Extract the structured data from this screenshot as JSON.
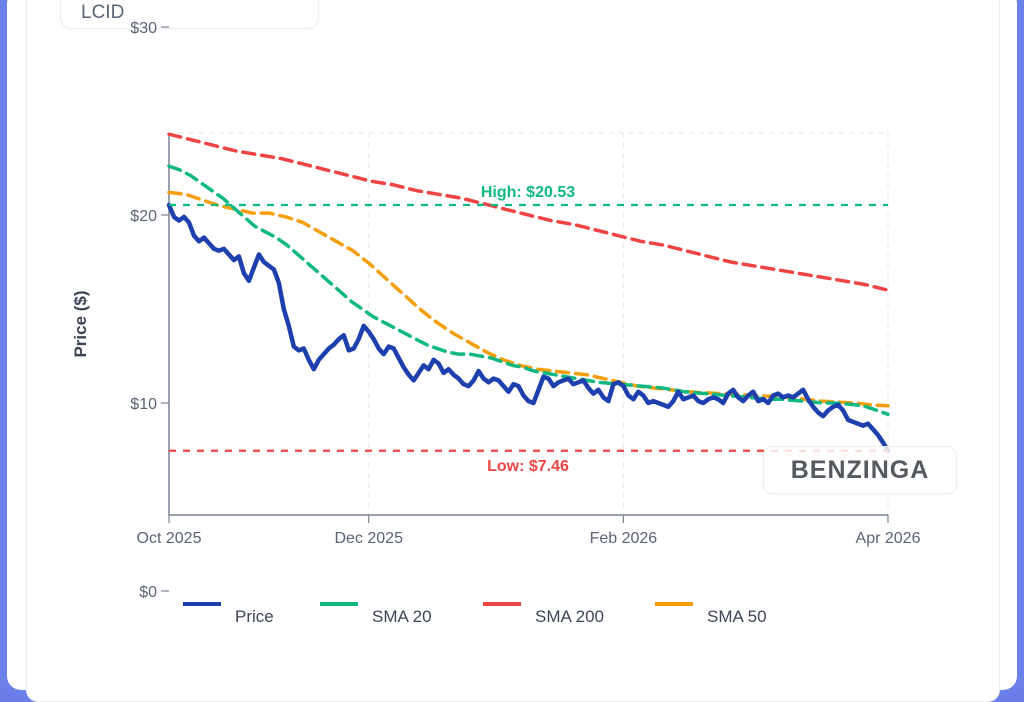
{
  "ticker": "LCID",
  "watermark": "BENZINGA",
  "chart_data": {
    "type": "line",
    "title": "",
    "xlabel": "",
    "ylabel": "Price ($)",
    "y_ticks": [
      {
        "value": 0,
        "label": "$0"
      },
      {
        "value": 10,
        "label": "$10"
      },
      {
        "value": 20,
        "label": "$20"
      },
      {
        "value": 30,
        "label": "$30"
      }
    ],
    "x_ticks": [
      {
        "index": 0,
        "label": "Oct 2025"
      },
      {
        "index": 40,
        "label": "Dec 2025"
      },
      {
        "index": 91,
        "label": "Feb 2026"
      },
      {
        "index": 144,
        "label": "Apr 2026"
      }
    ],
    "ylim": [
      4.2,
      24.5
    ],
    "grid": true,
    "legend_position": "bottom",
    "colors": {
      "price": "#1e3fae",
      "sma20": "#10b981",
      "sma200": "#ef4444",
      "sma50": "#f59e0b"
    },
    "annotations": [
      {
        "label": "High: $20.53",
        "value": 20.53,
        "color": "#10b981"
      },
      {
        "label": "Low: $7.46",
        "value": 7.46,
        "color": "#ef4444"
      }
    ],
    "legend": [
      "Price",
      "SMA 20",
      "SMA 200",
      "SMA 50"
    ],
    "series": [
      {
        "name": "Price",
        "key": "price",
        "values": [
          20.53,
          19.9,
          19.7,
          19.9,
          19.6,
          18.9,
          18.6,
          18.8,
          18.5,
          18.2,
          18.1,
          18.2,
          17.9,
          17.6,
          17.8,
          16.9,
          16.5,
          17.2,
          17.9,
          17.5,
          17.3,
          17.1,
          16.4,
          15.0,
          14.1,
          13.0,
          12.8,
          12.9,
          12.3,
          11.8,
          12.3,
          12.6,
          12.9,
          13.1,
          13.4,
          13.6,
          12.8,
          12.9,
          13.4,
          14.1,
          13.8,
          13.4,
          12.9,
          12.6,
          13.0,
          12.9,
          12.4,
          11.9,
          11.5,
          11.2,
          11.6,
          12.0,
          11.8,
          12.3,
          12.1,
          11.6,
          11.8,
          11.5,
          11.3,
          11.0,
          10.9,
          11.2,
          11.7,
          11.3,
          11.1,
          11.3,
          11.2,
          10.9,
          10.6,
          11.0,
          10.9,
          10.4,
          10.1,
          10.0,
          10.7,
          11.4,
          11.3,
          10.9,
          11.1,
          11.2,
          11.3,
          11.0,
          11.1,
          11.2,
          10.8,
          10.5,
          10.7,
          10.3,
          10.1,
          11.0,
          11.1,
          10.9,
          10.4,
          10.2,
          10.6,
          10.4,
          10.0,
          10.1,
          10.0,
          9.9,
          9.8,
          10.1,
          10.6,
          10.2,
          10.3,
          10.4,
          10.1,
          10.0,
          10.2,
          10.3,
          10.2,
          10.0,
          10.5,
          10.7,
          10.3,
          10.1,
          10.4,
          10.6,
          10.1,
          10.2,
          10.0,
          10.4,
          10.5,
          10.3,
          10.4,
          10.3,
          10.5,
          10.7,
          10.2,
          9.8,
          9.5,
          9.3,
          9.6,
          9.8,
          9.9,
          9.6,
          9.1,
          9.0,
          8.9,
          8.8,
          8.9,
          8.6,
          8.3,
          7.9,
          7.46
        ]
      },
      {
        "name": "SMA 20",
        "key": "sma20",
        "values": [
          22.6,
          22.4,
          22.1,
          21.7,
          21.3,
          20.9,
          20.4,
          19.9,
          19.4,
          19.1,
          18.8,
          18.4,
          17.9,
          17.4,
          16.9,
          16.4,
          15.9,
          15.4,
          15.0,
          14.6,
          14.3,
          14.0,
          13.7,
          13.4,
          13.1,
          12.9,
          12.7,
          12.6,
          12.6,
          12.5,
          12.4,
          12.2,
          12.0,
          11.9,
          11.7,
          11.6,
          11.5,
          11.4,
          11.3,
          11.2,
          11.1,
          11.05,
          11.0,
          10.95,
          10.9,
          10.85,
          10.8,
          10.7,
          10.6,
          10.55,
          10.5,
          10.45,
          10.4,
          10.35,
          10.3,
          10.25,
          10.2,
          10.2,
          10.15,
          10.1,
          10.05,
          10.0,
          10.0,
          9.95,
          9.9,
          9.8,
          9.6,
          9.4
        ]
      },
      {
        "name": "SMA 200",
        "key": "sma200",
        "values": [
          24.3,
          24.0,
          23.7,
          23.4,
          23.2,
          23.0,
          22.7,
          22.4,
          22.1,
          21.8,
          21.6,
          21.3,
          21.1,
          20.9,
          20.6,
          20.3,
          20.0,
          19.7,
          19.5,
          19.2,
          18.9,
          18.6,
          18.4,
          18.1,
          17.8,
          17.5,
          17.3,
          17.1,
          16.9,
          16.7,
          16.5,
          16.3,
          16.0
        ]
      },
      {
        "name": "SMA 50",
        "key": "sma50",
        "values": [
          21.2,
          21.1,
          20.8,
          20.5,
          20.3,
          20.1,
          20.1,
          19.9,
          19.6,
          19.1,
          18.6,
          18.1,
          17.4,
          16.6,
          15.8,
          15.0,
          14.3,
          13.7,
          13.2,
          12.7,
          12.3,
          12.0,
          11.8,
          11.7,
          11.6,
          11.5,
          11.3,
          11.1,
          10.9,
          10.8,
          10.7,
          10.6,
          10.55,
          10.5,
          10.45,
          10.4,
          10.35,
          10.3,
          10.2,
          10.1,
          10.05,
          10.0,
          9.9,
          9.85
        ]
      }
    ]
  }
}
